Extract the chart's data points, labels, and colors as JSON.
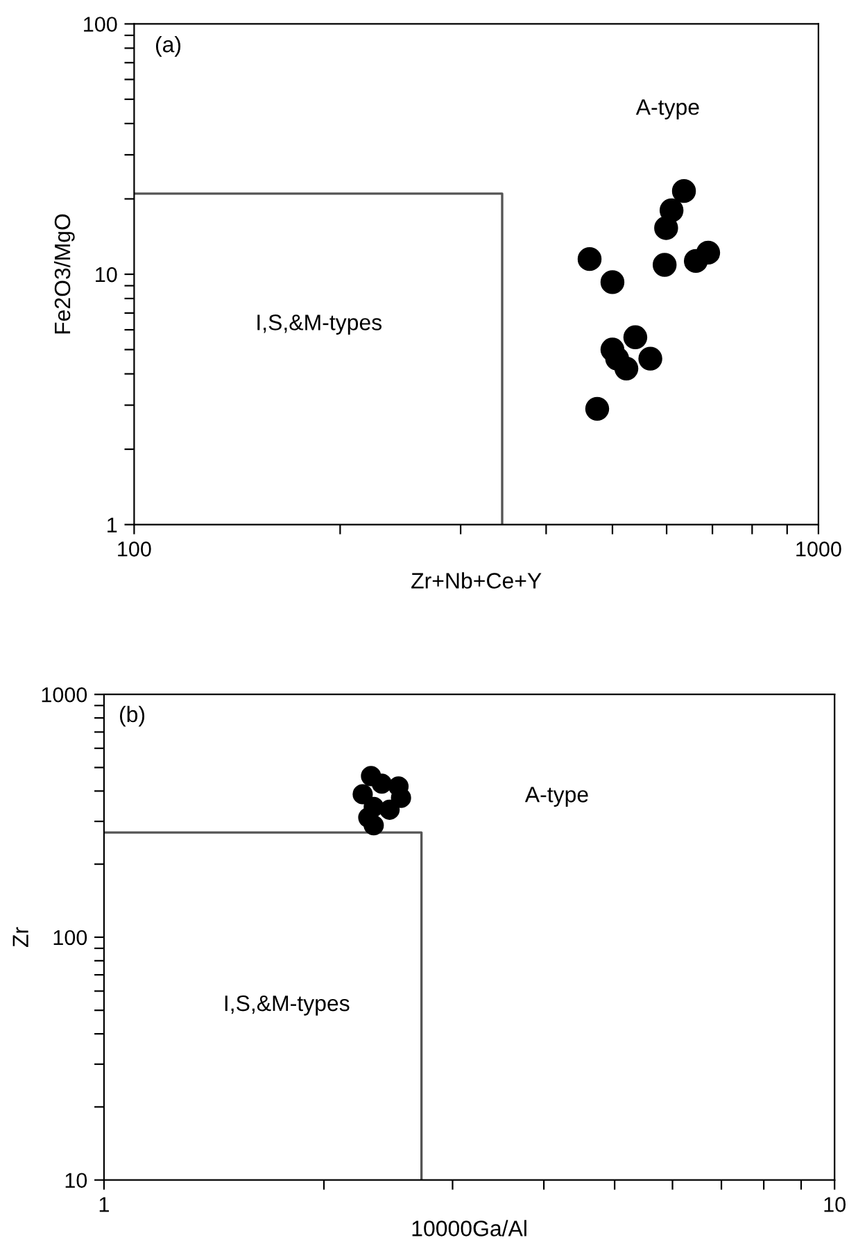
{
  "chart_data": [
    {
      "type": "scatter",
      "xlabel": "Zr+Nb+Ce+Y",
      "ylabel": "Fe2O3/MgO",
      "log": "xy",
      "grid": false,
      "legend": false,
      "marker": "circle",
      "xlim": [
        100,
        1000
      ],
      "ylim": [
        1,
        100
      ],
      "xticks": [
        100,
        {
          "value": 200,
          "label": null
        },
        {
          "value": 300,
          "label": null
        },
        {
          "value": 400,
          "label": null
        },
        {
          "value": 500,
          "label": null
        },
        {
          "value": 600,
          "label": null
        },
        {
          "value": 700,
          "label": null
        },
        {
          "value": 800,
          "label": null
        },
        {
          "value": 900,
          "label": null
        },
        1000
      ],
      "yticks": [
        1,
        {
          "value": 2,
          "label": null
        },
        {
          "value": 3,
          "label": null
        },
        {
          "value": 4,
          "label": null
        },
        {
          "value": 5,
          "label": null
        },
        {
          "value": 6,
          "label": null
        },
        {
          "value": 7,
          "label": null
        },
        {
          "value": 8,
          "label": null
        },
        {
          "value": 9,
          "label": null
        },
        10,
        {
          "value": 20,
          "label": null
        },
        {
          "value": 30,
          "label": null
        },
        {
          "value": 40,
          "label": null
        },
        {
          "value": 50,
          "label": null
        },
        {
          "value": 60,
          "label": null
        },
        {
          "value": 70,
          "label": null
        },
        {
          "value": 80,
          "label": null
        },
        {
          "value": 90,
          "label": null
        },
        100
      ],
      "annotations": [
        "(a)",
        "A-type",
        "I,S,&M-types"
      ],
      "series": [
        {
          "color": "#000000",
          "x": [
            463,
            500,
            596,
            599,
            610,
            636,
            662,
            690,
            500,
            508,
            524,
            540,
            568,
            475
          ],
          "values": [
            11.5,
            9.3,
            10.9,
            15.3,
            18.0,
            21.5,
            11.3,
            12.2,
            5.0,
            4.6,
            4.2,
            5.6,
            4.6,
            2.9
          ]
        },
        {
          "type": "line",
          "color": "#555555",
          "marker": "none",
          "x": [
            100,
            345,
            345
          ],
          "values": [
            21,
            21,
            1
          ]
        }
      ]
    },
    {
      "type": "scatter",
      "xlabel": "10000Ga/Al",
      "ylabel": "Zr",
      "log": "xy",
      "grid": false,
      "legend": false,
      "marker": "circle",
      "xlim": [
        1,
        10
      ],
      "ylim": [
        10,
        1000
      ],
      "xticks": [
        1,
        {
          "value": 2,
          "label": null
        },
        {
          "value": 3,
          "label": null
        },
        {
          "value": 4,
          "label": null
        },
        {
          "value": 5,
          "label": null
        },
        {
          "value": 6,
          "label": null
        },
        {
          "value": 7,
          "label": null
        },
        {
          "value": 8,
          "label": null
        },
        {
          "value": 9,
          "label": null
        },
        10
      ],
      "yticks": [
        10,
        {
          "value": 20,
          "label": null
        },
        {
          "value": 30,
          "label": null
        },
        {
          "value": 40,
          "label": null
        },
        {
          "value": 50,
          "label": null
        },
        {
          "value": 60,
          "label": null
        },
        {
          "value": 70,
          "label": null
        },
        {
          "value": 80,
          "label": null
        },
        {
          "value": 90,
          "label": null
        },
        100,
        {
          "value": 200,
          "label": null
        },
        {
          "value": 300,
          "label": null
        },
        {
          "value": 400,
          "label": null
        },
        {
          "value": 500,
          "label": null
        },
        {
          "value": 600,
          "label": null
        },
        {
          "value": 700,
          "label": null
        },
        {
          "value": 800,
          "label": null
        },
        {
          "value": 900,
          "label": null
        },
        1000
      ],
      "annotations": [
        "(b)",
        "A-type",
        "I,S,&M-types"
      ],
      "series": [
        {
          "color": "#000000",
          "x": [
            2.32,
            2.53,
            2.55,
            2.26,
            2.34,
            2.46,
            2.3,
            2.34,
            2.4
          ],
          "values": [
            461,
            418,
            375,
            388,
            344,
            335,
            311,
            289,
            429
          ]
        },
        {
          "type": "line",
          "color": "#555555",
          "marker": "none",
          "x": [
            1,
            2.72,
            2.72
          ],
          "values": [
            270,
            270,
            10
          ]
        }
      ]
    }
  ]
}
